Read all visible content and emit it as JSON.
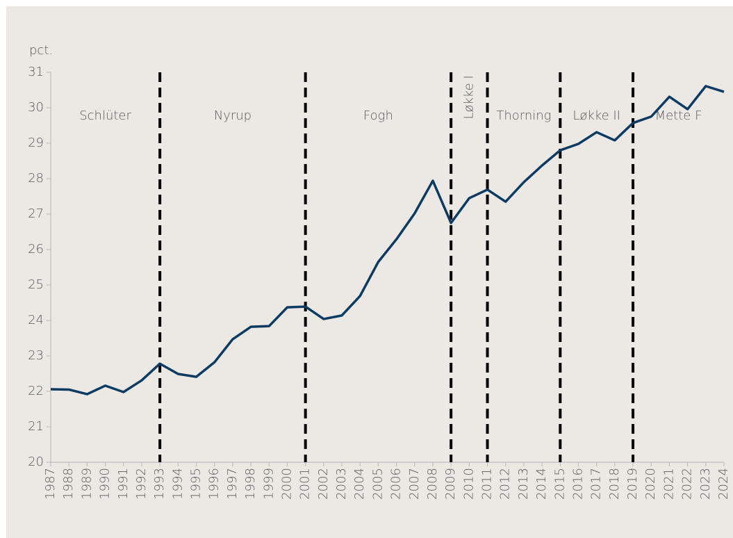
{
  "chart_data": {
    "type": "line",
    "y_axis_label": "pct.",
    "x": [
      1987,
      1988,
      1989,
      1990,
      1991,
      1992,
      1993,
      1994,
      1995,
      1996,
      1997,
      1998,
      1999,
      2000,
      2001,
      2002,
      2003,
      2004,
      2005,
      2006,
      2007,
      2008,
      2009,
      2010,
      2011,
      2012,
      2013,
      2014,
      2015,
      2016,
      2017,
      2018,
      2019,
      2020,
      2021,
      2022,
      2023,
      2024
    ],
    "series": [
      {
        "color": "#0b3a63",
        "values": [
          22.06,
          22.05,
          21.92,
          22.16,
          21.98,
          22.31,
          22.78,
          22.49,
          22.41,
          22.82,
          23.47,
          23.82,
          23.84,
          24.37,
          24.39,
          24.04,
          24.14,
          24.69,
          25.65,
          26.29,
          27.02,
          27.94,
          26.75,
          27.45,
          27.69,
          27.35,
          27.9,
          28.37,
          28.8,
          28.98,
          29.31,
          29.08,
          29.57,
          29.75,
          30.31,
          29.96,
          30.61,
          30.45
        ]
      }
    ],
    "dividers": [
      1993,
      2001,
      2009,
      2011,
      2015,
      2019
    ],
    "periods": [
      "Schlüter",
      "Nyrup",
      "Fogh",
      "Løkke I",
      "Thorning",
      "Løkke II",
      "Mette F"
    ],
    "xlim": [
      1987,
      2024
    ],
    "xticks": [
      1987,
      1988,
      1989,
      1990,
      1991,
      1992,
      1993,
      1994,
      1995,
      1996,
      1997,
      1998,
      1999,
      2000,
      2001,
      2002,
      2003,
      2004,
      2005,
      2006,
      2007,
      2008,
      2009,
      2010,
      2011,
      2012,
      2013,
      2014,
      2015,
      2016,
      2017,
      2018,
      2019,
      2020,
      2021,
      2022,
      2023,
      2024
    ],
    "ylim": [
      20,
      31
    ],
    "yticks": [
      20,
      21,
      22,
      23,
      24,
      25,
      26,
      27,
      28,
      29,
      30,
      31
    ]
  }
}
